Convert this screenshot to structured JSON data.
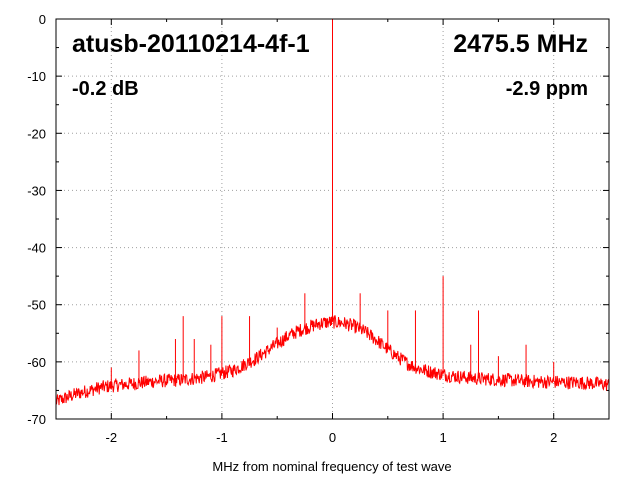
{
  "chart_data": {
    "type": "line",
    "title": "",
    "xlabel": "MHz from nominal frequency of test wave",
    "ylabel": "",
    "xlim": [
      -2.5,
      2.5
    ],
    "ylim": [
      -70,
      0
    ],
    "x_ticks": [
      -2,
      -1,
      0,
      1,
      2
    ],
    "x_tick_labels": [
      "-2",
      "-1",
      "0",
      "1",
      "2"
    ],
    "y_ticks": [
      0,
      -10,
      -20,
      -30,
      -40,
      -50,
      -60,
      -70
    ],
    "y_tick_labels": [
      "0",
      "-10",
      "-20",
      "-30",
      "-40",
      "-50",
      "-60",
      "-70"
    ],
    "grid": true,
    "series_color": "#ff0000",
    "annotations": {
      "device": "atusb-20110214-4f-1",
      "frequency": "2475.5 MHz",
      "level": "-0.2 dB",
      "offset": "-2.9 ppm"
    },
    "series": [
      {
        "x": [
          -2.5,
          -2.4,
          -2.3,
          -2.2,
          -2.1,
          -2.0,
          -1.9,
          -1.8,
          -1.7,
          -1.6,
          -1.5,
          -1.4,
          -1.3,
          -1.2,
          -1.1,
          -1.0,
          -0.9,
          -0.8,
          -0.7,
          -0.6,
          -0.5,
          -0.4,
          -0.3,
          -0.2,
          -0.1,
          0.0,
          0.1,
          0.2,
          0.3,
          0.4,
          0.5,
          0.6,
          0.7,
          0.8,
          0.9,
          1.0,
          1.1,
          1.2,
          1.3,
          1.4,
          1.5,
          1.6,
          1.7,
          1.8,
          1.9,
          2.0,
          2.1,
          2.2,
          2.3,
          2.4,
          2.5
        ],
        "values": [
          -67,
          -66.2,
          -65.5,
          -65,
          -64.5,
          -64.2,
          -64,
          -63.8,
          -63.6,
          -63.4,
          -63.3,
          -63.2,
          -63,
          -62.8,
          -62.5,
          -62,
          -61.5,
          -60.5,
          -59.5,
          -58.2,
          -56.8,
          -55.5,
          -54.5,
          -53.8,
          -53.2,
          -53,
          -53.2,
          -53.8,
          -54.8,
          -56.2,
          -57.8,
          -59.3,
          -60.5,
          -61.3,
          -61.8,
          -62.2,
          -62.5,
          -62.7,
          -62.9,
          -63,
          -63.1,
          -63.2,
          -63.3,
          -63.4,
          -63.5,
          -63.5,
          -63.6,
          -63.6,
          -63.7,
          -63.8,
          -64
        ]
      }
    ],
    "spurs": [
      {
        "x": -2.0,
        "y": -61
      },
      {
        "x": -1.75,
        "y": -58
      },
      {
        "x": -1.42,
        "y": -56
      },
      {
        "x": -1.35,
        "y": -52
      },
      {
        "x": -1.25,
        "y": -56
      },
      {
        "x": -1.1,
        "y": -57
      },
      {
        "x": -1.0,
        "y": -52
      },
      {
        "x": -0.75,
        "y": -52
      },
      {
        "x": -0.5,
        "y": -54
      },
      {
        "x": -0.25,
        "y": -48
      },
      {
        "x": 0.0,
        "y": 0
      },
      {
        "x": 0.25,
        "y": -48
      },
      {
        "x": 0.5,
        "y": -51
      },
      {
        "x": 0.75,
        "y": -51
      },
      {
        "x": 1.0,
        "y": -45
      },
      {
        "x": 1.25,
        "y": -57
      },
      {
        "x": 1.32,
        "y": -51
      },
      {
        "x": 1.5,
        "y": -59
      },
      {
        "x": 1.75,
        "y": -57
      },
      {
        "x": 2.0,
        "y": -60
      }
    ]
  }
}
